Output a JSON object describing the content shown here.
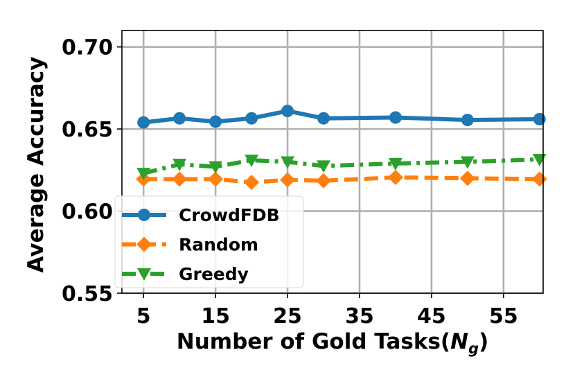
{
  "chart_data": {
    "type": "line",
    "x": [
      5,
      10,
      15,
      20,
      25,
      30,
      40,
      50,
      60
    ],
    "xticks": [
      "5",
      "15",
      "25",
      "35",
      "45",
      "55"
    ],
    "xtick_values": [
      5,
      15,
      25,
      35,
      45,
      55
    ],
    "yticks": [
      "0.55",
      "0.60",
      "0.65",
      "0.70"
    ],
    "ytick_values": [
      0.55,
      0.6,
      0.65,
      0.7
    ],
    "xlim": [
      2,
      60.5
    ],
    "ylim": [
      0.55,
      0.71
    ],
    "xlabel_main": "Number of Gold Tasks(",
    "xlabel_sym": "N",
    "xlabel_sub": "g",
    "xlabel_close": ")",
    "ylabel": "Average Accuracy",
    "grid": true,
    "legend_position": "lower-left",
    "series": [
      {
        "name": "CrowdFDB",
        "color": "#1f77b4",
        "marker": "circle",
        "linestyle": "solid",
        "values": [
          0.654,
          0.6565,
          0.6545,
          0.6565,
          0.661,
          0.6565,
          0.657,
          0.6555,
          0.656
        ]
      },
      {
        "name": "Random",
        "color": "#ff7f0e",
        "marker": "diamond",
        "linestyle": "dashed",
        "values": [
          0.6195,
          0.6195,
          0.6195,
          0.6175,
          0.619,
          0.6185,
          0.6205,
          0.62,
          0.6195
        ]
      },
      {
        "name": "Greedy",
        "color": "#2ca02c",
        "marker": "triangle-down",
        "linestyle": "dashdot",
        "values": [
          0.623,
          0.6285,
          0.627,
          0.631,
          0.63,
          0.6275,
          0.629,
          0.63,
          0.6315
        ]
      }
    ]
  }
}
